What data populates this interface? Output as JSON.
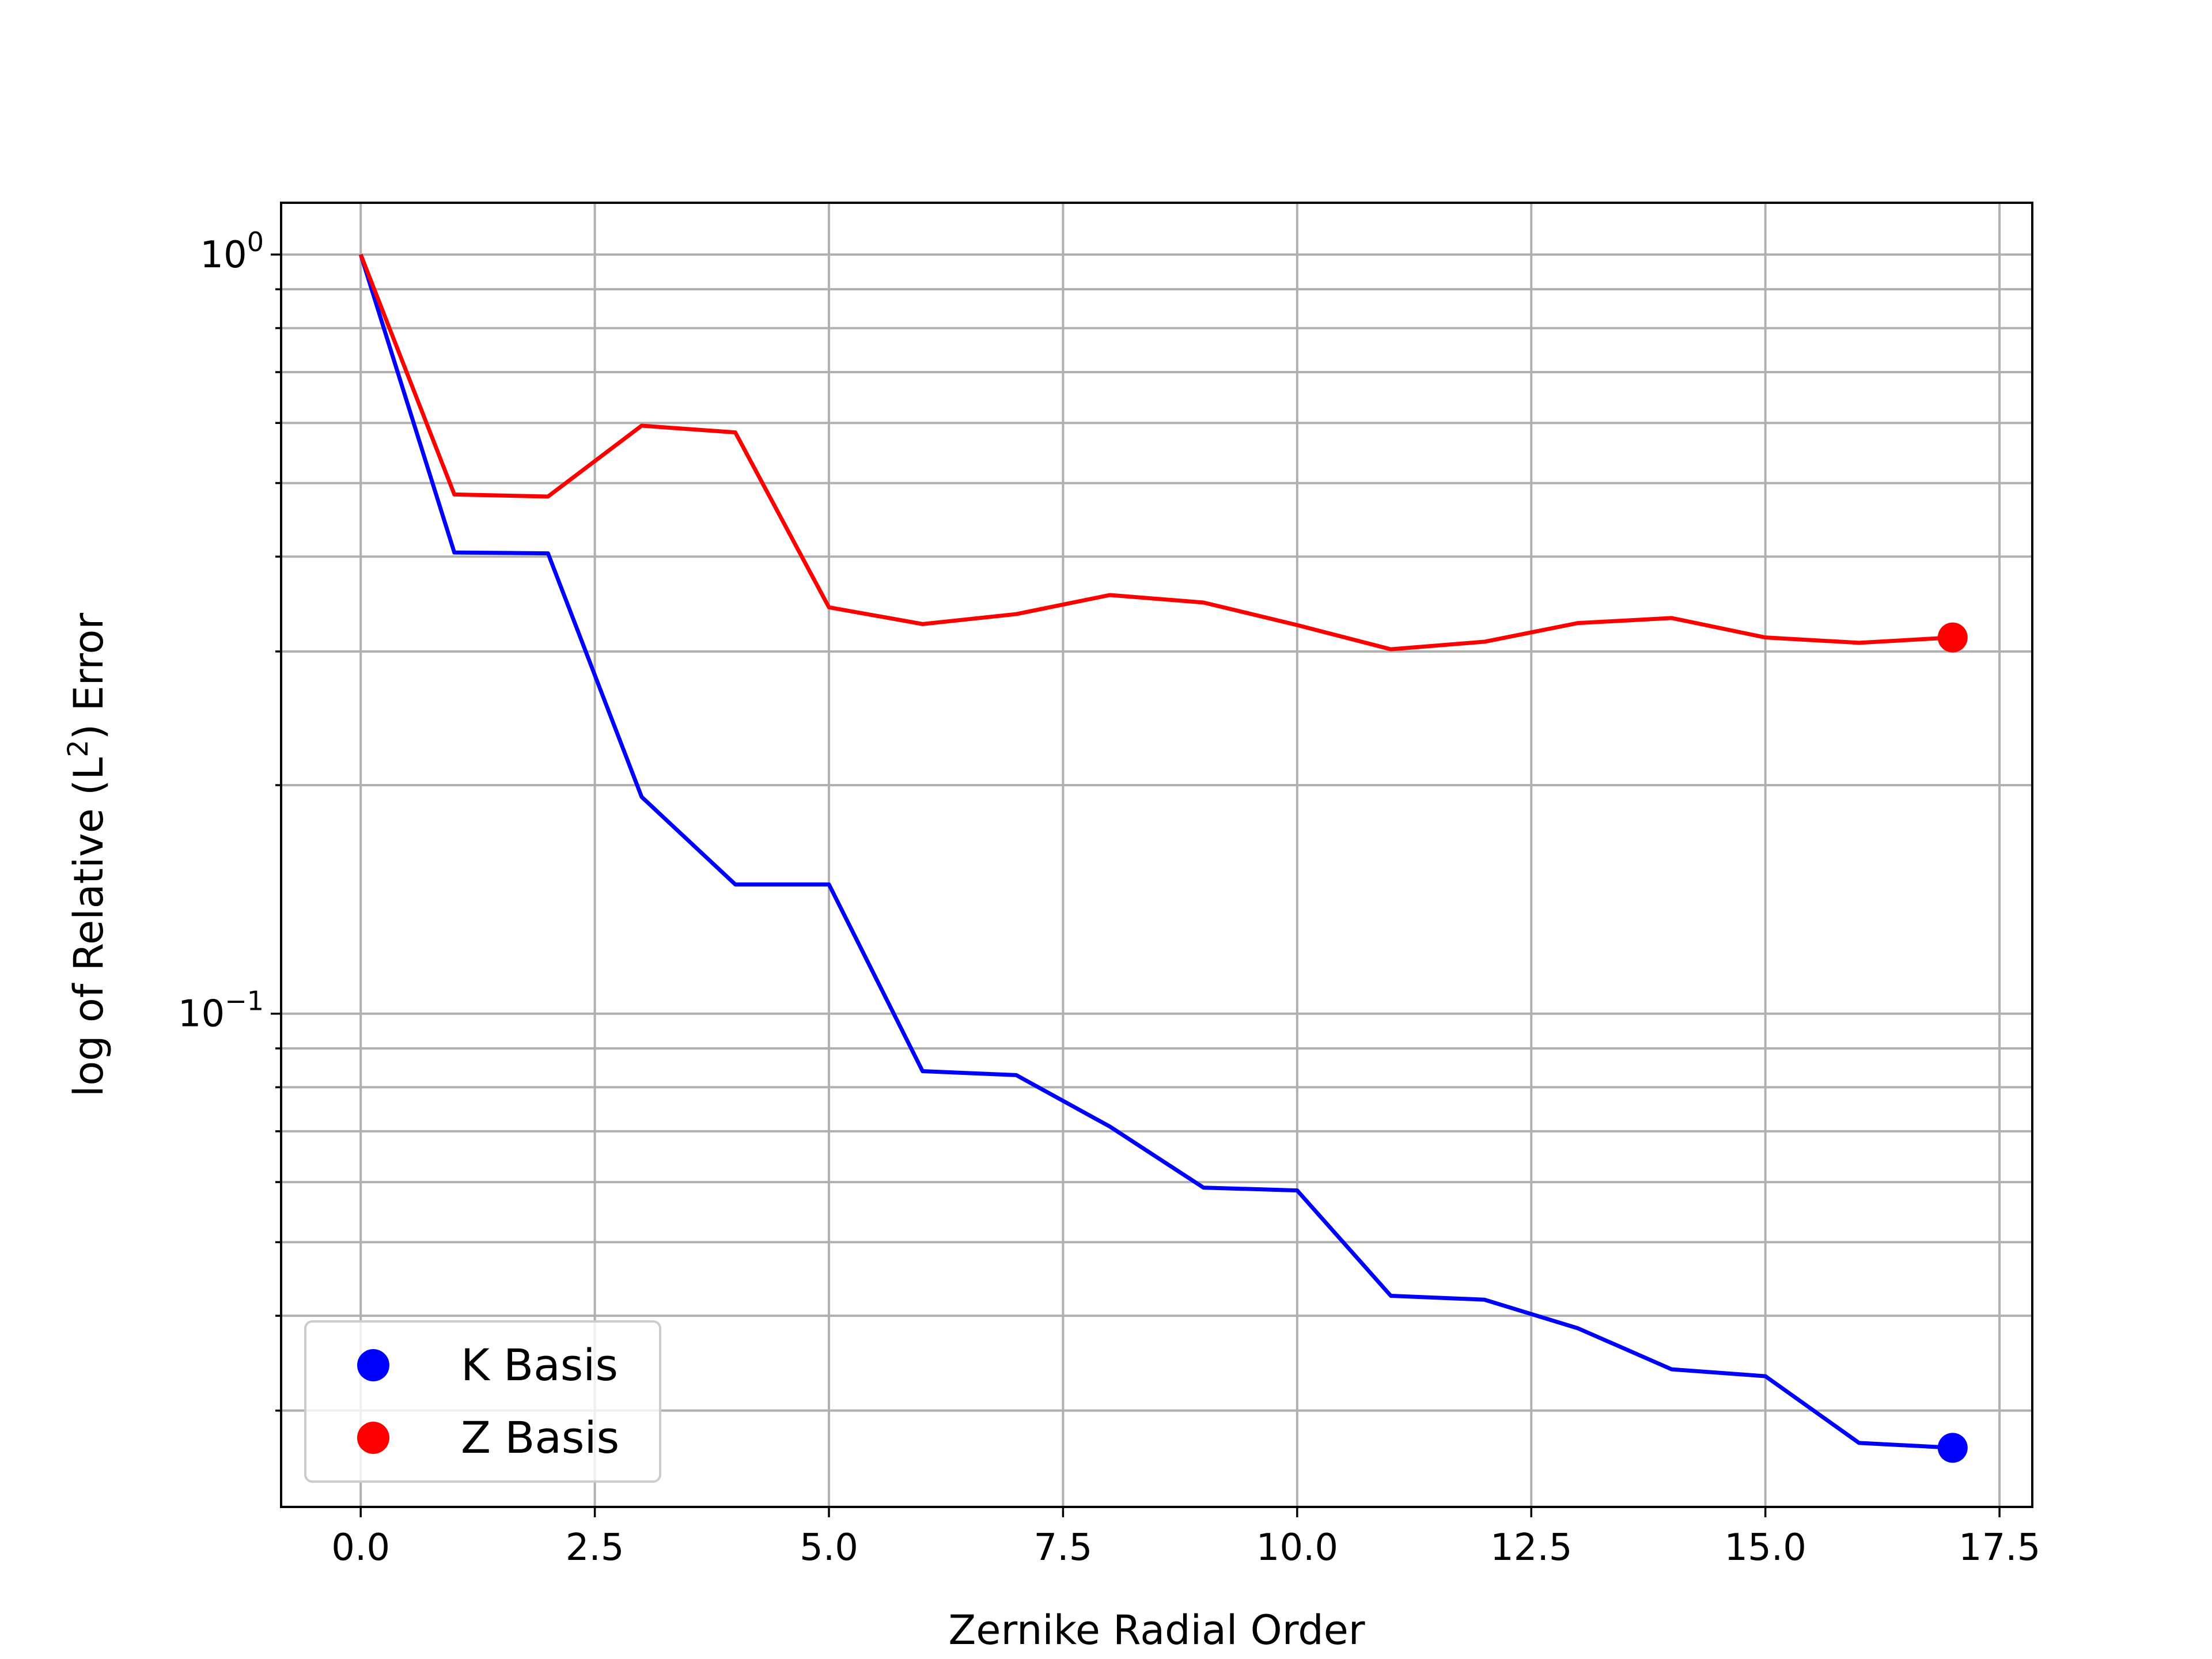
{
  "chart_data": {
    "type": "line",
    "title": "",
    "xlabel": "Zernike Radial Order",
    "ylabel_main": "log of Relative (L",
    "ylabel_sup": "2",
    "ylabel_tail": ") Error",
    "x_scale": "linear",
    "y_scale": "log",
    "xlim": [
      -0.85,
      17.85
    ],
    "ylim": [
      0.0224,
      1.17
    ],
    "grid": "on (major and minor)",
    "x_ticks": [
      0.0,
      2.5,
      5.0,
      7.5,
      10.0,
      12.5,
      15.0,
      17.5
    ],
    "x_tick_labels": [
      "0.0",
      "2.5",
      "5.0",
      "7.5",
      "10.0",
      "12.5",
      "15.0",
      "17.5"
    ],
    "y_ticks": [
      {
        "value": 1.0,
        "base": "10",
        "exp": "0"
      },
      {
        "value": 0.1,
        "base": "10",
        "exp": "−1"
      }
    ],
    "y_minor_ticks": [
      0.03,
      0.04,
      0.05,
      0.06,
      0.07,
      0.08,
      0.09,
      0.2,
      0.3,
      0.4,
      0.5,
      0.6,
      0.7,
      0.8,
      0.9
    ],
    "legend_position": "lower-left",
    "x": [
      0,
      1,
      2,
      3,
      4,
      5,
      6,
      7,
      8,
      9,
      10,
      11,
      12,
      13,
      14,
      15,
      16,
      17
    ],
    "series": [
      {
        "name": "K Basis",
        "color": "#0000ff",
        "values": [
          1.0,
          0.405,
          0.404,
          0.193,
          0.148,
          0.148,
          0.084,
          0.083,
          0.071,
          0.059,
          0.0585,
          0.0425,
          0.042,
          0.0385,
          0.034,
          0.0333,
          0.0272,
          0.0268
        ],
        "endpoint_marker": true
      },
      {
        "name": "Z Basis",
        "color": "#ff0000",
        "values": [
          1.0,
          0.483,
          0.48,
          0.595,
          0.583,
          0.343,
          0.326,
          0.336,
          0.356,
          0.348,
          0.325,
          0.302,
          0.309,
          0.327,
          0.332,
          0.313,
          0.308,
          0.313
        ],
        "endpoint_marker": true
      }
    ]
  }
}
